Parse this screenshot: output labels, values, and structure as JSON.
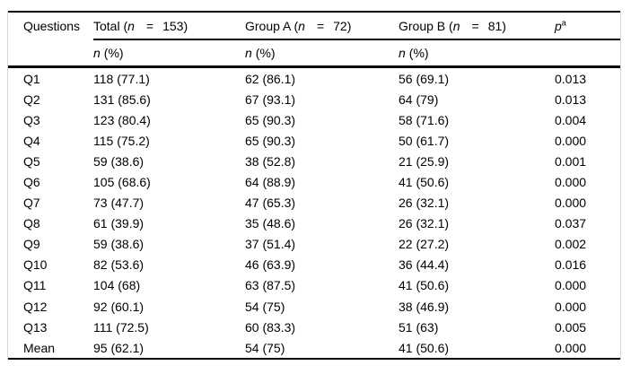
{
  "table": {
    "header": {
      "questions_label": "Questions",
      "groups": [
        {
          "pre": "Total (",
          "n_var": "n",
          "eq": "=",
          "num": "153)"
        },
        {
          "pre": "Group A (",
          "n_var": "n",
          "eq": "=",
          "num": "72)"
        },
        {
          "pre": "Group B (",
          "n_var": "n",
          "eq": "=",
          "num": "81)"
        }
      ],
      "p_label": "p",
      "p_sup": "a",
      "subheader": {
        "n_var": "n",
        "pct": "(%)"
      }
    },
    "rows": [
      {
        "q": "Q1",
        "total": "118 (77.1)",
        "group_a": "62 (86.1)",
        "group_b": "56 (69.1)",
        "p": "0.013"
      },
      {
        "q": "Q2",
        "total": "131 (85.6)",
        "group_a": "67 (93.1)",
        "group_b": "64 (79)",
        "p": "0.013"
      },
      {
        "q": "Q3",
        "total": "123 (80.4)",
        "group_a": "65 (90.3)",
        "group_b": "58 (71.6)",
        "p": "0.004"
      },
      {
        "q": "Q4",
        "total": "115 (75.2)",
        "group_a": "65 (90.3)",
        "group_b": "50 (61.7)",
        "p": "0.000"
      },
      {
        "q": "Q5",
        "total": "59 (38.6)",
        "group_a": "38 (52.8)",
        "group_b": "21 (25.9)",
        "p": "0.001"
      },
      {
        "q": "Q6",
        "total": "105 (68.6)",
        "group_a": "64 (88.9)",
        "group_b": "41 (50.6)",
        "p": "0.000"
      },
      {
        "q": "Q7",
        "total": "73 (47.7)",
        "group_a": "47 (65.3)",
        "group_b": "26 (32.1)",
        "p": "0.000"
      },
      {
        "q": "Q8",
        "total": "61 (39.9)",
        "group_a": "35 (48.6)",
        "group_b": "26 (32.1)",
        "p": "0.037"
      },
      {
        "q": "Q9",
        "total": "59 (38.6)",
        "group_a": "37 (51.4)",
        "group_b": "22 (27.2)",
        "p": "0.002"
      },
      {
        "q": "Q10",
        "total": "82 (53.6)",
        "group_a": "46 (63.9)",
        "group_b": "36 (44.4)",
        "p": "0.016"
      },
      {
        "q": "Q11",
        "total": "104 (68)",
        "group_a": "63 (87.5)",
        "group_b": "41 (50.6)",
        "p": "0.000"
      },
      {
        "q": "Q12",
        "total": "92 (60.1)",
        "group_a": "54 (75)",
        "group_b": "38 (46.9)",
        "p": "0.000"
      },
      {
        "q": "Q13",
        "total": "111 (72.5)",
        "group_a": "60 (83.3)",
        "group_b": "51 (63)",
        "p": "0.005"
      },
      {
        "q": "Mean",
        "total": "95 (62.1)",
        "group_a": "54 (75)",
        "group_b": "41 (50.6)",
        "p": "0.000"
      }
    ]
  },
  "colors": {
    "background": "#ffffff",
    "text": "#000000",
    "rule": "#000000",
    "faint_border": "#d8d8d8"
  }
}
